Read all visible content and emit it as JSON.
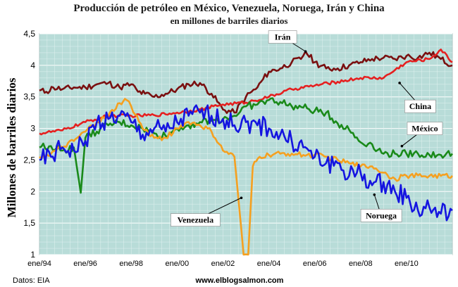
{
  "chart_data": {
    "type": "line",
    "title": "Producción de petróleo en México, Venezuela, Noruega, Irán y China",
    "subtitle": "en millones de barriles diarios",
    "ylabel": "Millones de barriles diarios",
    "ylim": [
      1,
      4.5
    ],
    "yticks": [
      "1",
      "1,5",
      "2",
      "2,5",
      "3",
      "3,5",
      "4",
      "4,5"
    ],
    "xlim": [
      1994,
      2012
    ],
    "xticks": [
      "ene/94",
      "ene/96",
      "ene/98",
      "ene/00",
      "ene/02",
      "ene/04",
      "ene/06",
      "ene/08",
      "ene/10"
    ],
    "grid": true,
    "background": "#b8dcd8",
    "series": [
      {
        "name": "Irán",
        "color": "#7a1010",
        "points": [
          [
            1994,
            3.6
          ],
          [
            1994.3,
            3.58
          ],
          [
            1994.6,
            3.65
          ],
          [
            1995,
            3.62
          ],
          [
            1995.5,
            3.65
          ],
          [
            1996,
            3.65
          ],
          [
            1996.5,
            3.7
          ],
          [
            1997,
            3.72
          ],
          [
            1997.5,
            3.65
          ],
          [
            1998,
            3.7
          ],
          [
            1998.3,
            3.58
          ],
          [
            1998.6,
            3.55
          ],
          [
            1999,
            3.5
          ],
          [
            1999.5,
            3.55
          ],
          [
            2000,
            3.62
          ],
          [
            2000.5,
            3.7
          ],
          [
            2001,
            3.72
          ],
          [
            2001.5,
            3.55
          ],
          [
            2002,
            3.3
          ],
          [
            2002.5,
            3.25
          ],
          [
            2003,
            3.5
          ],
          [
            2003.5,
            3.65
          ],
          [
            2004,
            3.9
          ],
          [
            2004.5,
            3.95
          ],
          [
            2005,
            4.05
          ],
          [
            2005.4,
            4.1
          ],
          [
            2005.6,
            4.22
          ],
          [
            2006,
            4.05
          ],
          [
            2006.5,
            3.95
          ],
          [
            2007,
            3.95
          ],
          [
            2007.5,
            4.0
          ],
          [
            2008,
            4.05
          ],
          [
            2008.5,
            4.1
          ],
          [
            2009,
            4.12
          ],
          [
            2009.5,
            4.1
          ],
          [
            2010,
            4.15
          ],
          [
            2010.5,
            4.12
          ],
          [
            2011,
            4.2
          ],
          [
            2011.5,
            4.1
          ],
          [
            2012,
            4.0
          ]
        ]
      },
      {
        "name": "China",
        "color": "#e52020",
        "points": [
          [
            1994,
            2.92
          ],
          [
            1995,
            2.97
          ],
          [
            1996,
            3.1
          ],
          [
            1997,
            3.2
          ],
          [
            1998,
            3.2
          ],
          [
            1999,
            3.21
          ],
          [
            2000,
            3.25
          ],
          [
            2001,
            3.3
          ],
          [
            2002,
            3.38
          ],
          [
            2003,
            3.41
          ],
          [
            2004,
            3.5
          ],
          [
            2005,
            3.62
          ],
          [
            2006,
            3.68
          ],
          [
            2007,
            3.74
          ],
          [
            2008,
            3.8
          ],
          [
            2009,
            3.8
          ],
          [
            2010,
            4.05
          ],
          [
            2011,
            4.1
          ],
          [
            2011.5,
            4.25
          ],
          [
            2012,
            4.05
          ]
        ]
      },
      {
        "name": "México",
        "color": "#1a8a1a",
        "points": [
          [
            1994,
            2.7
          ],
          [
            1994.5,
            2.72
          ],
          [
            1995,
            2.65
          ],
          [
            1995.5,
            2.7
          ],
          [
            1995.8,
            1.98
          ],
          [
            1996,
            2.85
          ],
          [
            1996.5,
            2.95
          ],
          [
            1997,
            3.05
          ],
          [
            1997.5,
            3.1
          ],
          [
            1998,
            3.05
          ],
          [
            1998.5,
            3.0
          ],
          [
            1999,
            2.92
          ],
          [
            1999.5,
            2.88
          ],
          [
            2000,
            3.0
          ],
          [
            2000.5,
            3.05
          ],
          [
            2001,
            3.1
          ],
          [
            2001.5,
            3.12
          ],
          [
            2002,
            3.15
          ],
          [
            2002.5,
            3.2
          ],
          [
            2003,
            3.35
          ],
          [
            2003.5,
            3.38
          ],
          [
            2004,
            3.45
          ],
          [
            2004.5,
            3.42
          ],
          [
            2005,
            3.35
          ],
          [
            2005.5,
            3.33
          ],
          [
            2006,
            3.28
          ],
          [
            2006.5,
            3.25
          ],
          [
            2007,
            3.08
          ],
          [
            2007.5,
            2.98
          ],
          [
            2008,
            2.78
          ],
          [
            2008.5,
            2.75
          ],
          [
            2009,
            2.6
          ],
          [
            2009.5,
            2.6
          ],
          [
            2010,
            2.6
          ],
          [
            2010.5,
            2.6
          ],
          [
            2011,
            2.58
          ],
          [
            2011.5,
            2.58
          ],
          [
            2012,
            2.6
          ]
        ]
      },
      {
        "name": "Venezuela",
        "color": "#f5a020",
        "points": [
          [
            1994,
            2.55
          ],
          [
            1994.5,
            2.6
          ],
          [
            1995,
            2.7
          ],
          [
            1995.5,
            2.8
          ],
          [
            1996,
            2.95
          ],
          [
            1996.5,
            3.1
          ],
          [
            1997,
            3.2
          ],
          [
            1997.5,
            3.4
          ],
          [
            1997.8,
            3.45
          ],
          [
            1998,
            3.35
          ],
          [
            1998.5,
            3.0
          ],
          [
            1999,
            2.85
          ],
          [
            1999.5,
            2.85
          ],
          [
            2000,
            3.0
          ],
          [
            2000.5,
            3.1
          ],
          [
            2001,
            3.05
          ],
          [
            2001.5,
            2.95
          ],
          [
            2002,
            2.65
          ],
          [
            2002.5,
            2.55
          ],
          [
            2002.8,
            1.4
          ],
          [
            2002.9,
            1.0
          ],
          [
            2003.1,
            1.0
          ],
          [
            2003.3,
            2.4
          ],
          [
            2003.6,
            2.55
          ],
          [
            2004,
            2.58
          ],
          [
            2004.5,
            2.6
          ],
          [
            2005,
            2.6
          ],
          [
            2005.5,
            2.58
          ],
          [
            2006,
            2.58
          ],
          [
            2006.5,
            2.55
          ],
          [
            2007,
            2.5
          ],
          [
            2007.5,
            2.45
          ],
          [
            2008,
            2.4
          ],
          [
            2008.5,
            2.4
          ],
          [
            2009,
            2.3
          ],
          [
            2009.5,
            2.2
          ],
          [
            2010,
            2.25
          ],
          [
            2011,
            2.25
          ],
          [
            2012,
            2.25
          ]
        ]
      },
      {
        "name": "Noruega",
        "color": "#1515e0",
        "points": [
          [
            1994,
            2.5
          ],
          [
            1994.5,
            2.55
          ],
          [
            1995,
            2.7
          ],
          [
            1995.5,
            2.65
          ],
          [
            1996,
            2.8
          ],
          [
            1996.5,
            3.1
          ],
          [
            1997,
            3.15
          ],
          [
            1997.5,
            3.2
          ],
          [
            1998,
            3.1
          ],
          [
            1998.5,
            2.9
          ],
          [
            1999,
            3.0
          ],
          [
            1999.5,
            2.95
          ],
          [
            2000,
            3.1
          ],
          [
            2000.5,
            3.2
          ],
          [
            2001,
            3.25
          ],
          [
            2001.5,
            3.2
          ],
          [
            2002,
            3.15
          ],
          [
            2002.5,
            3.05
          ],
          [
            2003,
            3.1
          ],
          [
            2003.5,
            3.05
          ],
          [
            2004,
            3.0
          ],
          [
            2004.5,
            2.9
          ],
          [
            2005,
            2.8
          ],
          [
            2005.5,
            2.7
          ],
          [
            2006,
            2.55
          ],
          [
            2006.5,
            2.45
          ],
          [
            2007,
            2.45
          ],
          [
            2007.5,
            2.25
          ],
          [
            2008,
            2.3
          ],
          [
            2008.5,
            2.1
          ],
          [
            2009,
            2.15
          ],
          [
            2009.5,
            2.0
          ],
          [
            2010,
            1.9
          ],
          [
            2010.5,
            1.7
          ],
          [
            2011,
            1.75
          ],
          [
            2011.5,
            1.65
          ],
          [
            2012,
            1.7
          ]
        ]
      }
    ],
    "annotations": [
      "Irán",
      "China",
      "México",
      "Venezuela",
      "Noruega"
    ]
  },
  "footer": {
    "source": "Datos: EIA",
    "site": "www.elblogsalmon.com"
  }
}
